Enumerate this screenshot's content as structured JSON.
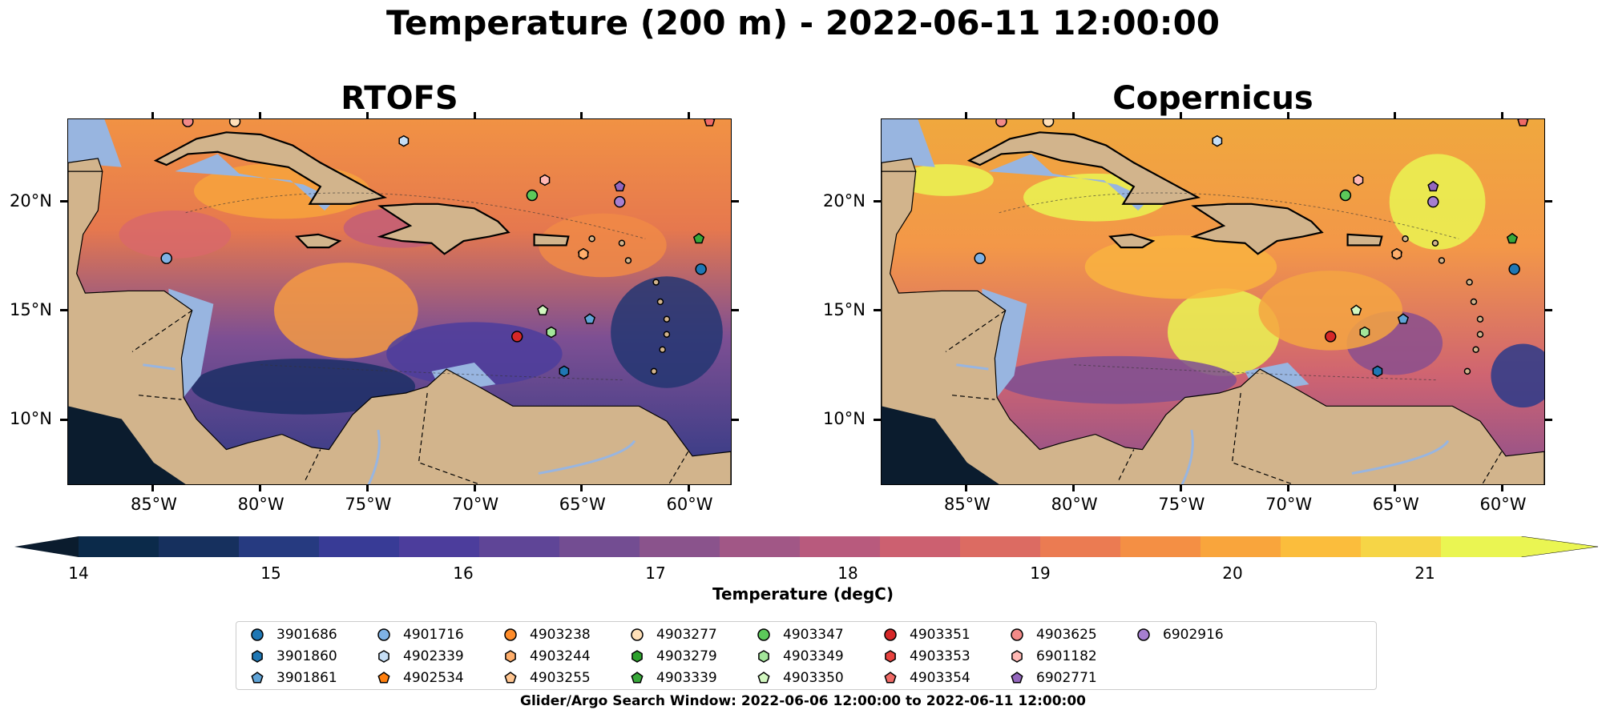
{
  "title": "Temperature (200 m) - 2022-06-11 12:00:00",
  "panels": [
    {
      "title": "RTOFS",
      "style": "warm"
    },
    {
      "title": "Copernicus",
      "style": "hot"
    }
  ],
  "axes": {
    "lon_labels": [
      "85°W",
      "80°W",
      "75°W",
      "70°W",
      "65°W",
      "60°W"
    ],
    "lon_values": [
      -85,
      -80,
      -75,
      -70,
      -65,
      -60
    ],
    "lat_labels": [
      "20°N",
      "15°N",
      "10°N"
    ],
    "lat_values": [
      20,
      15,
      10
    ],
    "lon_range": [
      -89,
      -58
    ],
    "lat_range": [
      7,
      23.8
    ]
  },
  "colorbar": {
    "label": "Temperature (degC)",
    "ticks": [
      "14",
      "15",
      "16",
      "17",
      "18",
      "19",
      "20",
      "21"
    ],
    "tick_values": [
      14,
      15,
      16,
      17,
      18,
      19,
      20,
      21
    ],
    "range": [
      14,
      21.5
    ],
    "colors": [
      "#0b2a4a",
      "#16305e",
      "#263a80",
      "#383b96",
      "#4c3d9c",
      "#5f4597",
      "#734d92",
      "#8a538c",
      "#a15786",
      "#b85a7d",
      "#cc6070",
      "#dc6b62",
      "#eb7b52",
      "#f48f44",
      "#f9a53c",
      "#fbbd3c",
      "#f6d546",
      "#eaf552"
    ],
    "extend_low_color": "#0b1c2e",
    "extend_high_color": "#eaf552"
  },
  "legend": {
    "items": [
      {
        "id": "3901686",
        "color": "#1f77b4",
        "marker": "circle"
      },
      {
        "id": "3901860",
        "color": "#1f77b4",
        "marker": "hexagon"
      },
      {
        "id": "3901861",
        "color": "#5fa3d6",
        "marker": "pentagon"
      },
      {
        "id": "4901716",
        "color": "#7fb2e5",
        "marker": "circle"
      },
      {
        "id": "4902339",
        "color": "#c6def5",
        "marker": "hexagon"
      },
      {
        "id": "4902534",
        "color": "#ff7f0e",
        "marker": "pentagon"
      },
      {
        "id": "4903238",
        "color": "#ff8c2a",
        "marker": "circle"
      },
      {
        "id": "4903244",
        "color": "#ffae6b",
        "marker": "hexagon"
      },
      {
        "id": "4903255",
        "color": "#ffc590",
        "marker": "pentagon"
      },
      {
        "id": "4903277",
        "color": "#ffe0b8",
        "marker": "circle"
      },
      {
        "id": "4903279",
        "color": "#2ca02c",
        "marker": "hexagon"
      },
      {
        "id": "4903339",
        "color": "#38a83a",
        "marker": "pentagon"
      },
      {
        "id": "4903347",
        "color": "#5cc95a",
        "marker": "circle"
      },
      {
        "id": "4903349",
        "color": "#a3e59a",
        "marker": "hexagon"
      },
      {
        "id": "4903350",
        "color": "#d2f7c0",
        "marker": "pentagon"
      },
      {
        "id": "4903351",
        "color": "#d62728",
        "marker": "circle"
      },
      {
        "id": "4903353",
        "color": "#e8423f",
        "marker": "hexagon"
      },
      {
        "id": "4903354",
        "color": "#f06a66",
        "marker": "pentagon"
      },
      {
        "id": "4903625",
        "color": "#f28a88",
        "marker": "circle"
      },
      {
        "id": "6901182",
        "color": "#ffb8b4",
        "marker": "hexagon"
      },
      {
        "id": "6902771",
        "color": "#9467bd",
        "marker": "pentagon"
      },
      {
        "id": "6902916",
        "color": "#a67fd0",
        "marker": "circle"
      }
    ]
  },
  "floats": [
    {
      "id": "4903625",
      "lon": -83.4,
      "lat": 23.7
    },
    {
      "id": "4903277",
      "lon": -81.2,
      "lat": 23.7
    },
    {
      "id": "4902339",
      "lon": -73.3,
      "lat": 22.8
    },
    {
      "id": "6901182",
      "lon": -66.7,
      "lat": 21.0
    },
    {
      "id": "4903347",
      "lon": -67.3,
      "lat": 20.3
    },
    {
      "id": "6902771",
      "lon": -63.2,
      "lat": 20.7
    },
    {
      "id": "6902916",
      "lon": -63.2,
      "lat": 20.0
    },
    {
      "id": "4901716",
      "lon": -84.4,
      "lat": 17.4
    },
    {
      "id": "4902534",
      "lon": -64.9,
      "lat": 17.6
    },
    {
      "id": "4903244",
      "lon": -64.9,
      "lat": 17.6
    },
    {
      "id": "4903339",
      "lon": -59.5,
      "lat": 18.3
    },
    {
      "id": "3901686",
      "lon": -59.4,
      "lat": 16.9
    },
    {
      "id": "4903350",
      "lon": -66.8,
      "lat": 15.0
    },
    {
      "id": "3901861",
      "lon": -64.6,
      "lat": 14.6
    },
    {
      "id": "4903349",
      "lon": -66.4,
      "lat": 14.0
    },
    {
      "id": "4903351",
      "lon": -68.0,
      "lat": 13.8
    },
    {
      "id": "3901860",
      "lon": -65.8,
      "lat": 12.2
    },
    {
      "id": "4903354",
      "lon": -59.0,
      "lat": 23.7
    }
  ],
  "footnote": "Glider/Argo Search Window: 2022-06-06 12:00:00 to 2022-06-11 12:00:00"
}
